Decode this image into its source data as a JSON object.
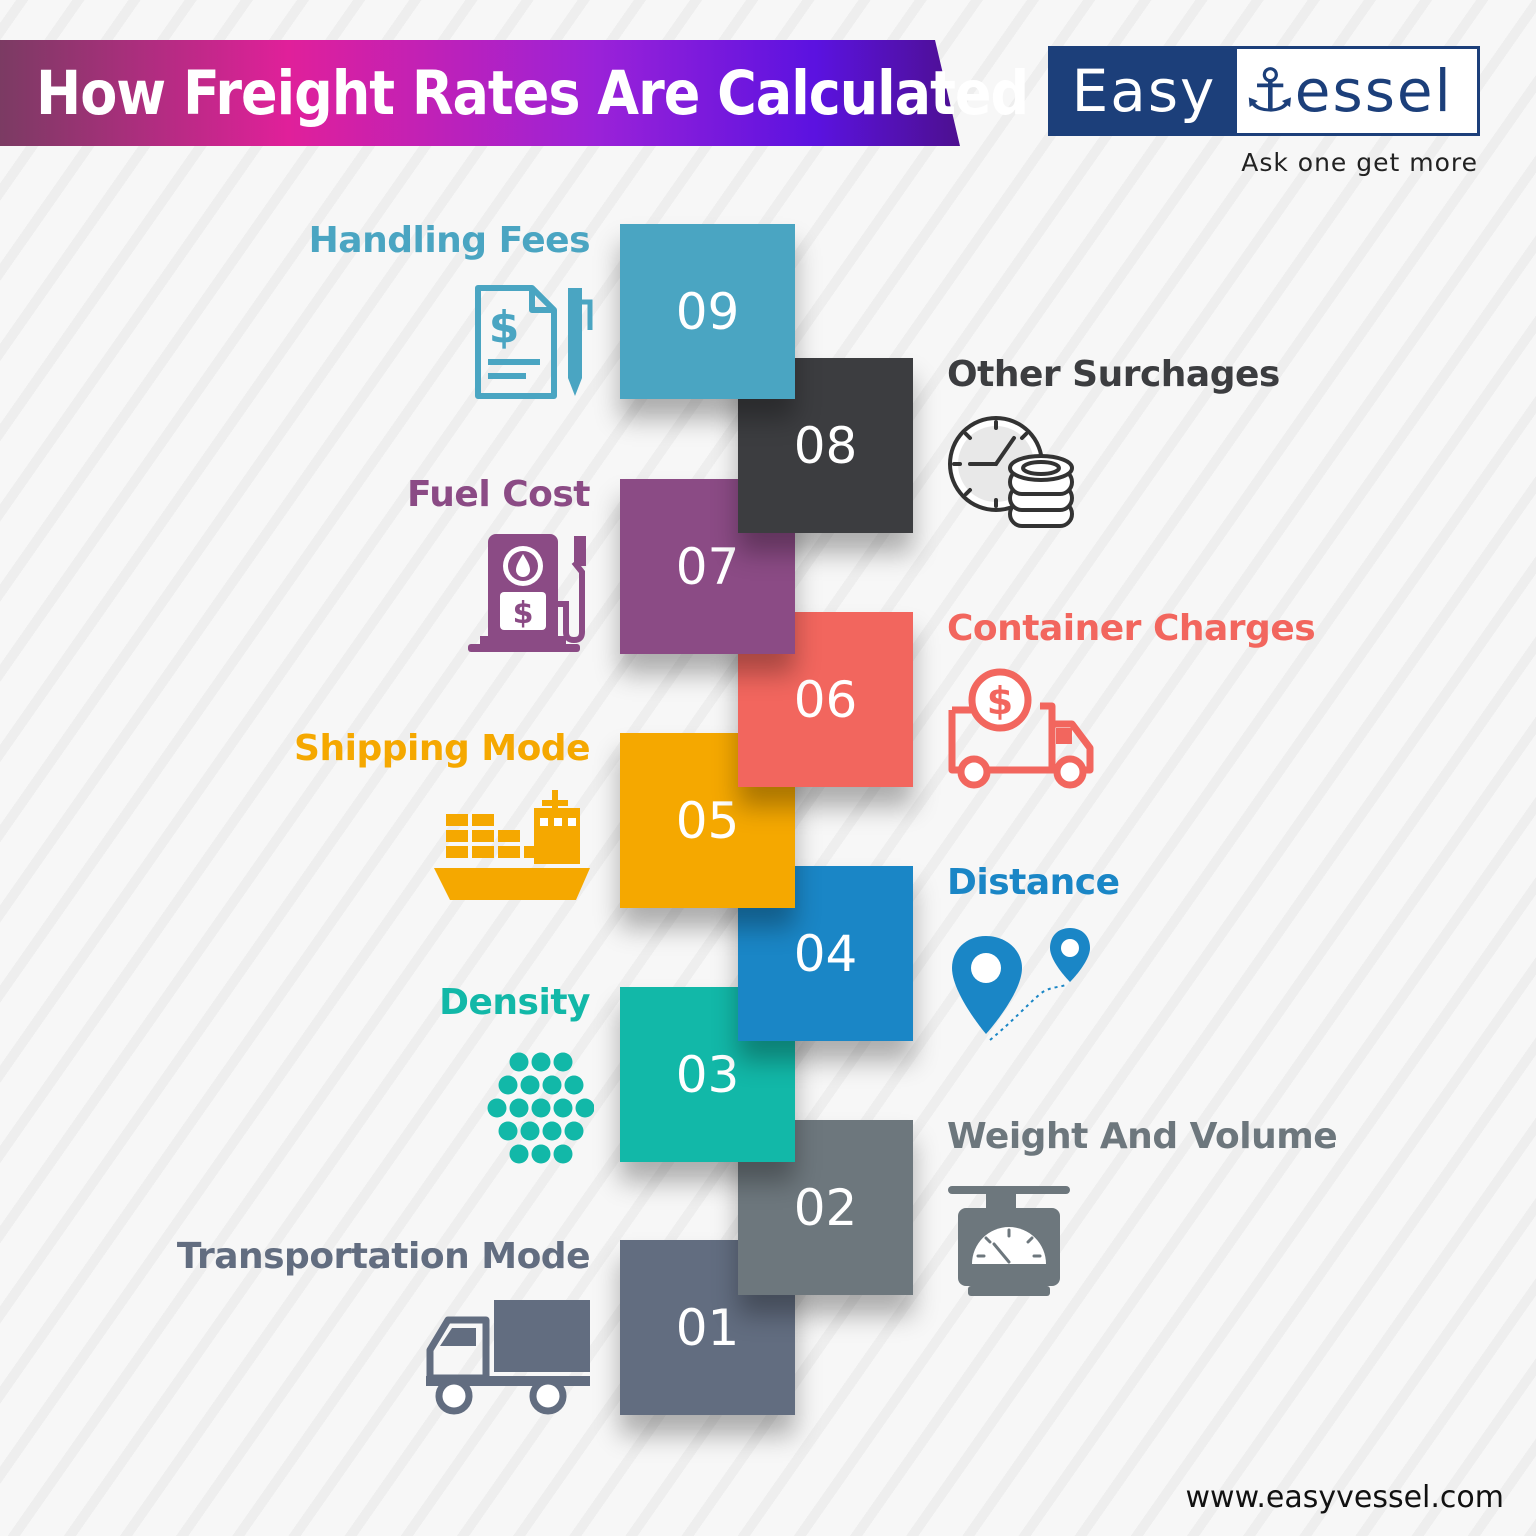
{
  "header": {
    "title": "How Freight Rates Are Calculated"
  },
  "logo": {
    "easy": "Easy",
    "vessel": "essel",
    "anchor": "⚓",
    "tagline": "Ask one get more"
  },
  "steps": [
    {
      "number": "01",
      "label": "Transportation Mode",
      "color": "#626d80",
      "icon": "truck-icon"
    },
    {
      "number": "02",
      "label": "Weight And Volume",
      "color": "#6d777d",
      "icon": "scale-icon"
    },
    {
      "number": "03",
      "label": "Density",
      "color": "#12b8a8",
      "icon": "dots-cluster-icon"
    },
    {
      "number": "04",
      "label": "Distance",
      "color": "#1a86c6",
      "icon": "location-pins-icon"
    },
    {
      "number": "05",
      "label": "Shipping Mode",
      "color": "#f5a800",
      "icon": "cargo-ship-icon"
    },
    {
      "number": "06",
      "label": "Container Charges",
      "color": "#f2665e",
      "icon": "delivery-truck-dollar-icon"
    },
    {
      "number": "07",
      "label": "Fuel Cost",
      "color": "#8b4b85",
      "icon": "fuel-pump-icon"
    },
    {
      "number": "08",
      "label": "Other Surchages",
      "color": "#3c3d40",
      "icon": "clock-coins-icon"
    },
    {
      "number": "09",
      "label": "Handling Fees",
      "color": "#4aa5c2",
      "icon": "invoice-pen-icon"
    }
  ],
  "footer": {
    "url": "www.easyvessel.com"
  }
}
